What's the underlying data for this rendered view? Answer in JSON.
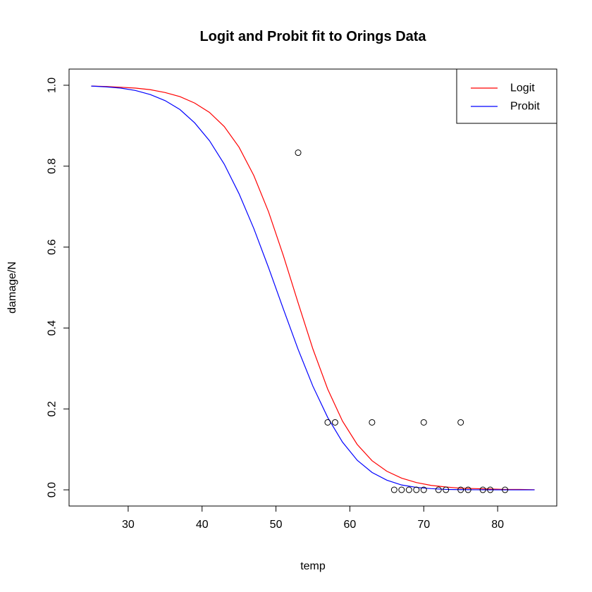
{
  "chart_data": {
    "type": "scatter",
    "title": "Logit and Probit fit to Orings Data",
    "xlabel": "temp",
    "ylabel": "damage/N",
    "xlim": [
      22,
      88
    ],
    "ylim": [
      -0.04,
      1.04
    ],
    "xticks": [
      30,
      40,
      50,
      60,
      70,
      80
    ],
    "yticks": [
      0.0,
      0.2,
      0.4,
      0.6,
      0.8,
      1.0
    ],
    "ytick_labels": [
      "0.0",
      "0.2",
      "0.4",
      "0.6",
      "0.8",
      "1.0"
    ],
    "legend": {
      "position": "top-right",
      "entries": [
        {
          "label": "Logit",
          "color": "#ff0000"
        },
        {
          "label": "Probit",
          "color": "#0000ff"
        }
      ]
    },
    "points": [
      {
        "x": 53,
        "y": 0.8333
      },
      {
        "x": 57,
        "y": 0.1667
      },
      {
        "x": 58,
        "y": 0.1667
      },
      {
        "x": 63,
        "y": 0.1667
      },
      {
        "x": 66,
        "y": 0.0
      },
      {
        "x": 67,
        "y": 0.0
      },
      {
        "x": 68,
        "y": 0.0
      },
      {
        "x": 69,
        "y": 0.0
      },
      {
        "x": 70,
        "y": 0.0
      },
      {
        "x": 70,
        "y": 0.1667
      },
      {
        "x": 72,
        "y": 0.0
      },
      {
        "x": 73,
        "y": 0.0
      },
      {
        "x": 75,
        "y": 0.0
      },
      {
        "x": 75,
        "y": 0.1667
      },
      {
        "x": 76,
        "y": 0.0
      },
      {
        "x": 78,
        "y": 0.0
      },
      {
        "x": 79,
        "y": 0.0
      },
      {
        "x": 81,
        "y": 0.0
      }
    ],
    "series": [
      {
        "name": "Logit",
        "color": "#ff0000",
        "x": [
          25,
          27,
          29,
          31,
          33,
          35,
          37,
          39,
          41,
          43,
          45,
          47,
          49,
          51,
          53,
          55,
          57,
          59,
          61,
          63,
          65,
          67,
          69,
          71,
          73,
          75,
          77,
          79,
          81,
          83,
          85
        ],
        "y": [
          0.998,
          0.997,
          0.995,
          0.993,
          0.989,
          0.982,
          0.972,
          0.956,
          0.933,
          0.898,
          0.847,
          0.777,
          0.687,
          0.579,
          0.462,
          0.348,
          0.249,
          0.17,
          0.112,
          0.072,
          0.046,
          0.029,
          0.018,
          0.011,
          0.007,
          0.004,
          0.003,
          0.002,
          0.001,
          0.001,
          0.0004
        ]
      },
      {
        "name": "Probit",
        "color": "#0000ff",
        "x": [
          25,
          27,
          29,
          31,
          33,
          35,
          37,
          39,
          41,
          43,
          45,
          47,
          49,
          51,
          53,
          55,
          57,
          59,
          61,
          63,
          65,
          67,
          69,
          71,
          73,
          75,
          77,
          79,
          81,
          83,
          85
        ],
        "y": [
          0.998,
          0.996,
          0.993,
          0.987,
          0.977,
          0.962,
          0.94,
          0.907,
          0.863,
          0.805,
          0.732,
          0.646,
          0.549,
          0.447,
          0.347,
          0.256,
          0.179,
          0.118,
          0.073,
          0.043,
          0.024,
          0.012,
          0.006,
          0.003,
          0.001,
          0.0005,
          0.0002,
          0.0001,
          0.0,
          0.0,
          0.0
        ]
      }
    ]
  }
}
